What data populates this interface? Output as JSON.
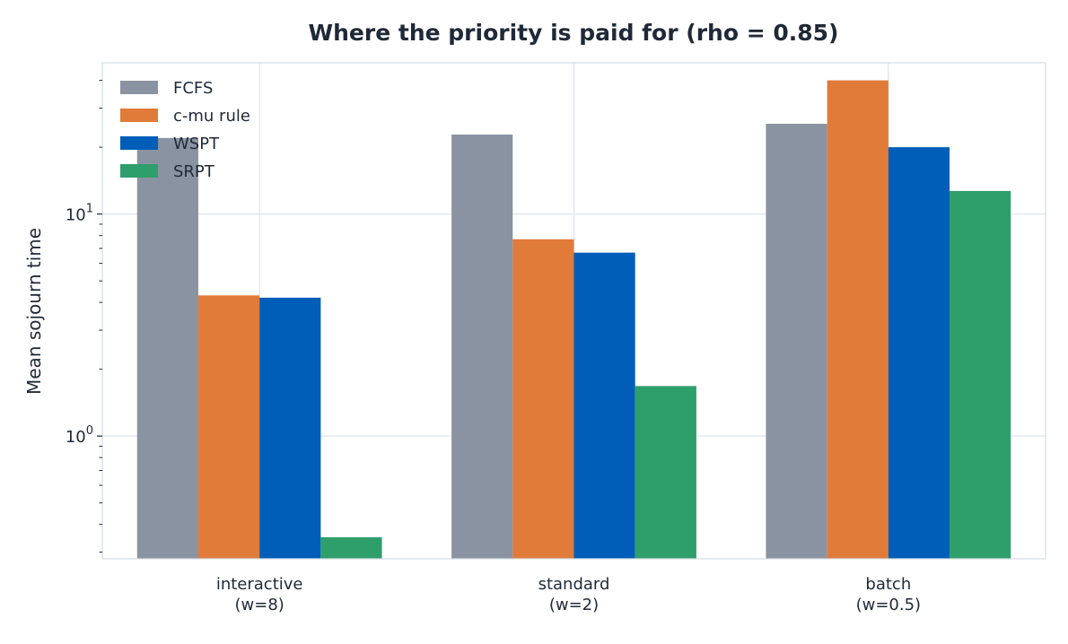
{
  "chart_data": {
    "type": "bar",
    "title": "Where the priority is paid for (rho = 0.85)",
    "xlabel": "",
    "ylabel": "Mean sojourn time",
    "y_scale": "log",
    "ylim": [
      0.28,
      48
    ],
    "y_ticks": [
      {
        "value": 1,
        "base": "10",
        "exp": "0"
      },
      {
        "value": 10,
        "base": "10",
        "exp": "1"
      }
    ],
    "categories": [
      [
        "interactive",
        "(w=8)"
      ],
      [
        "standard",
        "(w=2)"
      ],
      [
        "batch",
        "(w=0.5)"
      ]
    ],
    "series": [
      {
        "name": "FCFS",
        "color": "#8a93a1",
        "values": [
          22.0,
          22.8,
          25.5
        ]
      },
      {
        "name": "c-mu rule",
        "color": "#e07b39",
        "values": [
          4.3,
          7.7,
          40.0
        ]
      },
      {
        "name": "WSPT",
        "color": "#005eb8",
        "values": [
          4.2,
          6.7,
          20.0
        ]
      },
      {
        "name": "SRPT",
        "color": "#2e9e6b",
        "values": [
          0.35,
          1.68,
          12.7
        ]
      }
    ],
    "grid": true,
    "legend_position": "top-left"
  }
}
